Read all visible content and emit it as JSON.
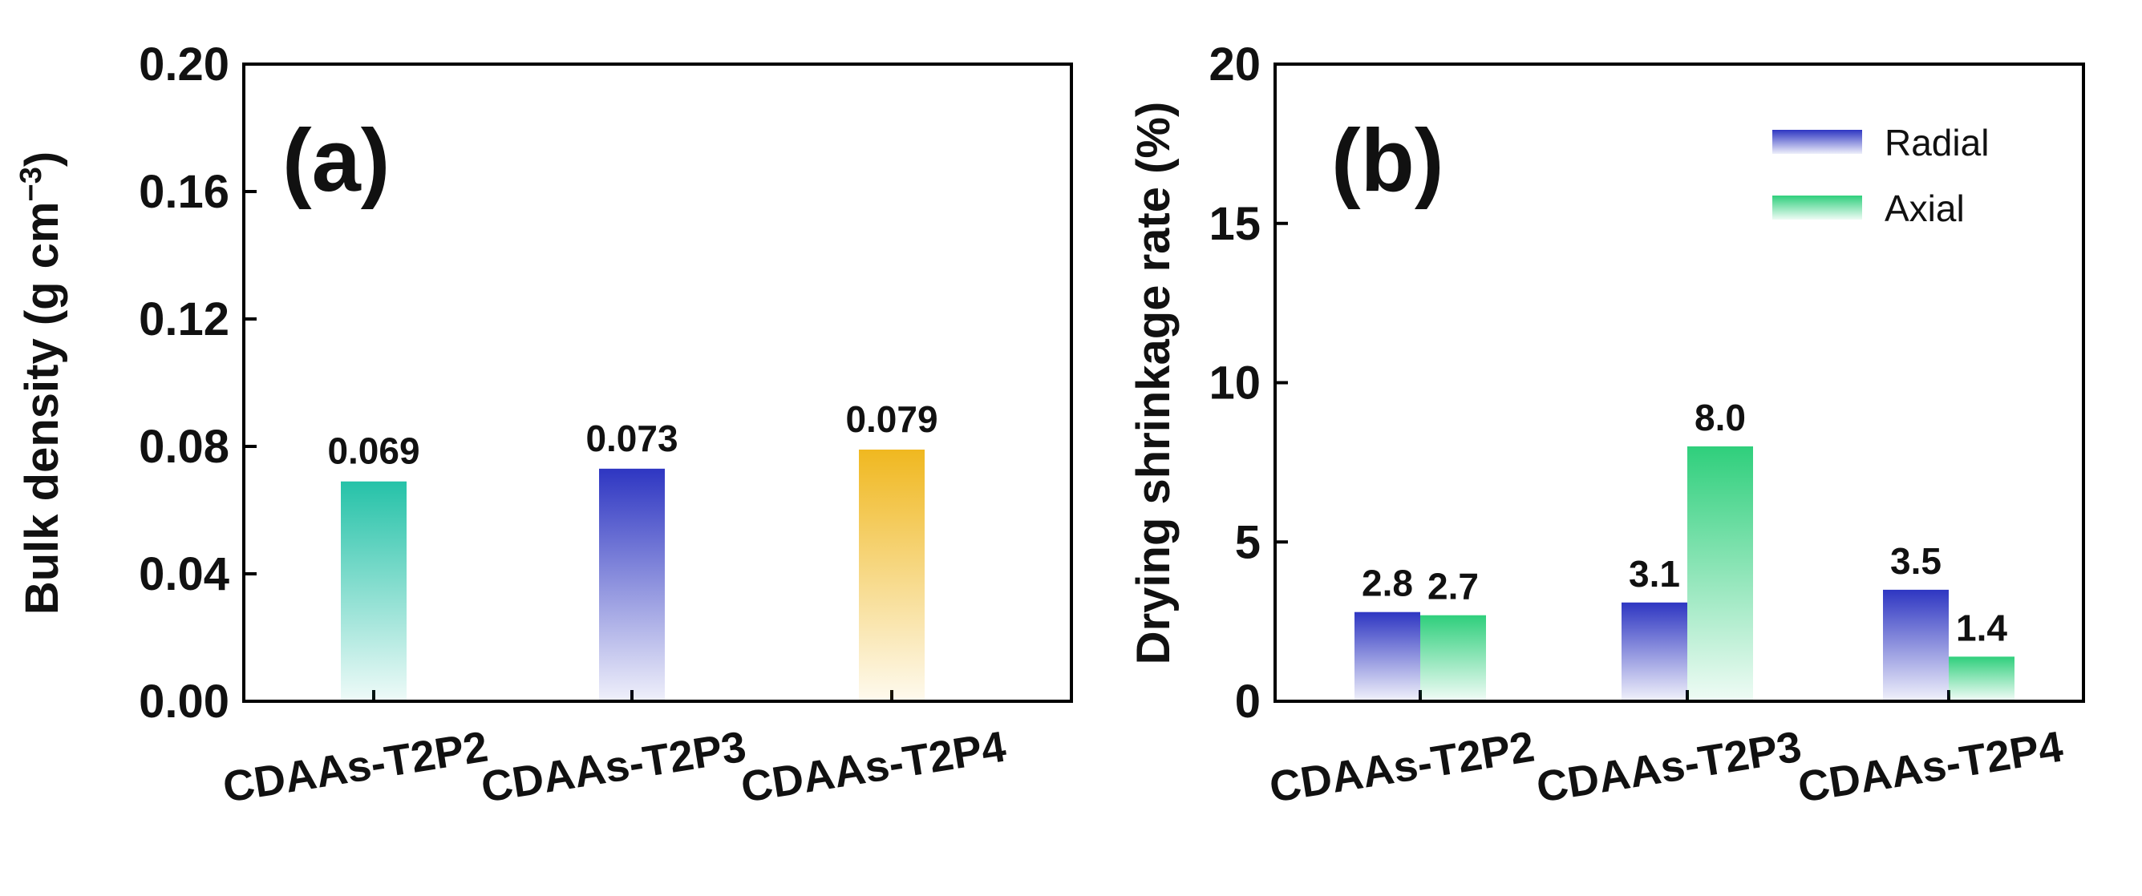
{
  "colors": {
    "teal": "#25c2a8",
    "blue": "#2e36c2",
    "gold": "#f0b820",
    "green": "#2fcf7c"
  },
  "chart_data": [
    {
      "type": "bar",
      "panel": "(a)",
      "categories": [
        "CDAAs-T2P2",
        "CDAAs-T2P3",
        "CDAAs-T2P4"
      ],
      "values": [
        0.069,
        0.073,
        0.079
      ],
      "value_labels": [
        "0.069",
        "0.073",
        "0.079"
      ],
      "bar_colors": [
        "teal",
        "blue",
        "gold"
      ],
      "ylabel": "Bulk density (g cm",
      "ylabel_superscript": "−3",
      "ylabel_close": ")",
      "ylim": [
        0,
        0.2
      ],
      "yticks": [
        0,
        0.04,
        0.08,
        0.12,
        0.16,
        0.2
      ],
      "ytick_labels": [
        "0.00",
        "0.04",
        "0.08",
        "0.12",
        "0.16",
        "0.20"
      ],
      "grid": false,
      "legend": null
    },
    {
      "type": "bar",
      "panel": "(b)",
      "categories": [
        "CDAAs-T2P2",
        "CDAAs-T2P3",
        "CDAAs-T2P4"
      ],
      "series": [
        {
          "name": "Radial",
          "color": "blue",
          "values": [
            2.8,
            3.1,
            3.5
          ],
          "value_labels": [
            "2.8",
            "3.1",
            "3.5"
          ]
        },
        {
          "name": "Axial",
          "color": "green",
          "values": [
            2.7,
            8.0,
            1.4
          ],
          "value_labels": [
            "2.7",
            "8.0",
            "1.4"
          ]
        }
      ],
      "ylabel": "Drying shrinkage rate (%)",
      "ylim": [
        0,
        20
      ],
      "yticks": [
        0,
        5,
        10,
        15,
        20
      ],
      "ytick_labels": [
        "0",
        "5",
        "10",
        "15",
        "20"
      ],
      "grid": false,
      "legend": "top-right"
    }
  ]
}
